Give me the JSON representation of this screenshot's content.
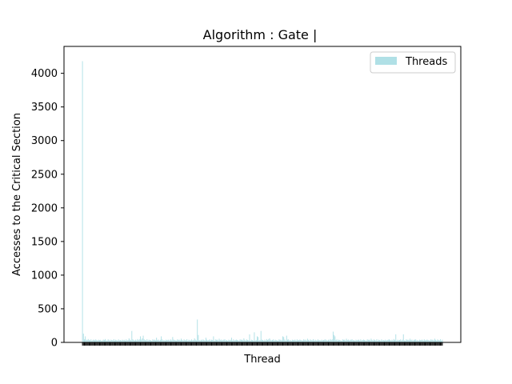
{
  "chart_data": {
    "type": "bar",
    "title": "Algorithm : Gate |",
    "xlabel": "Thread",
    "ylabel": "Accesses to the Critical Section",
    "ylim": [
      0,
      4400
    ],
    "yticks": [
      0,
      500,
      1000,
      1500,
      2000,
      2500,
      3000,
      3500,
      4000
    ],
    "legend": {
      "position": "top-right"
    },
    "grid": false,
    "series": [
      {
        "name": "Threads",
        "color": "#b0e0e6",
        "values": [
          4180,
          130,
          45,
          90,
          40,
          35,
          50,
          38,
          30,
          45,
          25,
          38,
          40,
          30,
          45,
          35,
          28,
          40,
          32,
          38,
          25,
          30,
          42,
          35,
          50,
          30,
          28,
          45,
          38,
          22,
          40,
          35,
          30,
          48,
          26,
          40,
          33,
          28,
          45,
          30,
          35,
          28,
          40,
          32,
          38,
          26,
          44,
          30,
          36,
          60,
          40,
          30,
          170,
          45,
          35,
          28,
          40,
          30,
          50,
          35,
          45,
          90,
          40,
          60,
          100,
          45,
          35,
          30,
          48,
          28,
          40,
          35,
          30,
          25,
          45,
          38,
          40,
          30,
          70,
          35,
          42,
          28,
          38,
          90,
          45,
          30,
          35,
          25,
          40,
          33,
          38,
          40,
          28,
          45,
          30,
          80,
          42,
          36,
          30,
          28,
          45,
          38,
          40,
          30,
          55,
          38,
          28,
          45,
          35,
          30,
          48,
          26,
          40,
          33,
          28,
          45,
          30,
          35,
          60,
          40,
          30,
          340,
          110,
          35,
          28,
          40,
          30,
          45,
          35,
          30,
          70,
          40,
          30,
          36,
          45,
          28,
          40,
          35,
          90,
          25,
          45,
          38,
          40,
          30,
          55,
          35,
          42,
          28,
          38,
          40,
          45,
          30,
          35,
          25,
          40,
          33,
          38,
          70,
          28,
          45,
          30,
          36,
          42,
          36,
          30,
          28,
          45,
          38,
          40,
          30,
          60,
          38,
          28,
          45,
          35,
          30,
          120,
          26,
          40,
          33,
          28,
          150,
          30,
          35,
          90,
          80,
          30,
          36,
          170,
          40,
          35,
          28,
          40,
          30,
          50,
          35,
          45,
          60,
          40,
          30,
          36,
          45,
          28,
          40,
          35,
          30,
          25,
          45,
          38,
          40,
          30,
          90,
          80,
          42,
          28,
          100,
          40,
          45,
          30,
          35,
          25,
          40,
          33,
          38,
          40,
          28,
          45,
          30,
          36,
          42,
          36,
          30,
          28,
          45,
          38,
          40,
          30,
          55,
          38,
          28,
          45,
          35,
          30,
          48,
          26,
          40,
          33,
          28,
          45,
          30,
          35,
          28,
          40,
          30,
          36,
          40,
          45,
          35,
          28,
          40,
          30,
          50,
          35,
          45,
          160,
          110,
          90,
          36,
          45,
          28,
          40,
          35,
          30,
          25,
          45,
          38,
          40,
          30,
          55,
          35,
          42,
          28,
          38,
          40,
          45,
          30,
          35,
          25,
          40,
          33,
          38,
          40,
          28,
          45,
          30,
          36,
          42,
          36,
          30,
          28,
          45,
          38,
          40,
          30,
          55,
          38,
          28,
          45,
          35,
          30,
          48,
          26,
          40,
          33,
          28,
          45,
          30,
          35,
          28,
          40,
          30,
          36,
          40,
          45,
          35,
          28,
          40,
          30,
          50,
          35,
          120,
          28,
          40,
          30,
          36,
          45,
          28,
          40,
          120,
          30,
          25,
          45,
          38,
          40,
          30,
          55,
          35,
          42,
          28,
          38,
          40,
          45,
          30,
          35,
          25,
          40,
          33,
          38,
          40,
          28,
          45,
          30,
          36,
          42,
          36,
          30,
          28,
          45,
          38,
          40,
          30,
          55,
          38,
          28,
          45,
          35,
          30,
          48,
          26,
          40
        ]
      }
    ]
  }
}
